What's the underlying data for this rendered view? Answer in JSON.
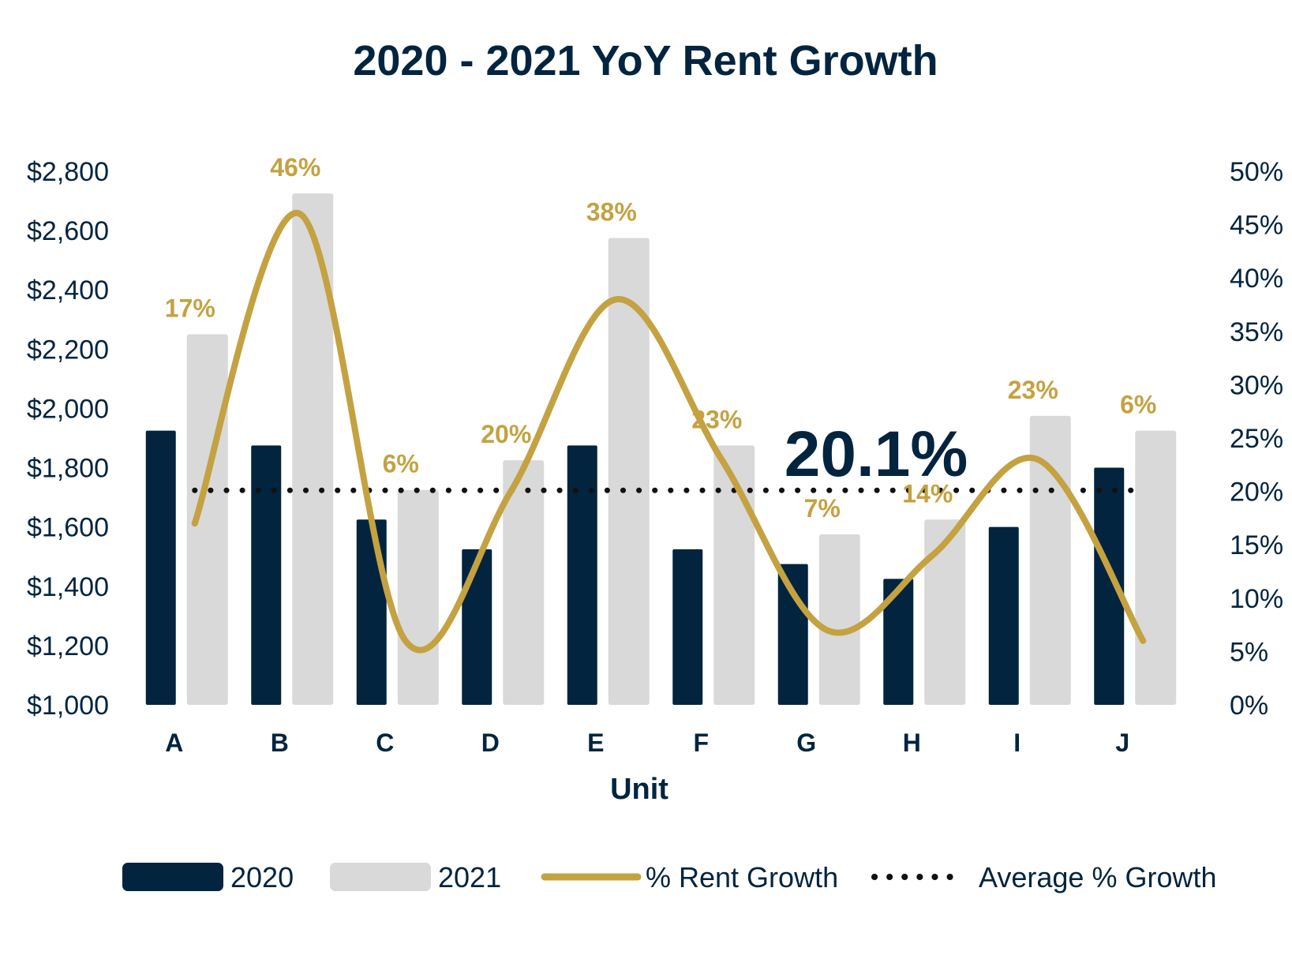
{
  "colors": {
    "navy": "#02243f",
    "gray": "#d9d9d9",
    "gold": "#c4a241",
    "dots": "#111111"
  },
  "chart_data": {
    "type": "bar",
    "title": "2020 - 2021 YoY Rent Growth",
    "xlabel": "Unit",
    "ylabel": "",
    "categories": [
      "A",
      "B",
      "C",
      "D",
      "E",
      "F",
      "G",
      "H",
      "I",
      "J"
    ],
    "ylim": [
      1000,
      2800
    ],
    "yticks": [
      1000,
      1200,
      1400,
      1600,
      1800,
      2000,
      2200,
      2400,
      2600,
      2800
    ],
    "ytick_labels": [
      "$1,000",
      "$1,200",
      "$1,400",
      "$1,600",
      "$1,800",
      "$2,000",
      "$2,200",
      "$2,400",
      "$2,600",
      "$2,800"
    ],
    "y2lim": [
      0,
      50
    ],
    "y2ticks": [
      0,
      5,
      10,
      15,
      20,
      25,
      30,
      35,
      40,
      45,
      50
    ],
    "y2tick_labels": [
      "0%",
      "5%",
      "10%",
      "15%",
      "20%",
      "25%",
      "30%",
      "35%",
      "40%",
      "45%",
      "50%"
    ],
    "series": [
      {
        "name": "2020",
        "type": "bar",
        "values": [
          1925,
          1875,
          1625,
          1525,
          1875,
          1525,
          1475,
          1425,
          1600,
          1800
        ]
      },
      {
        "name": "2021",
        "type": "bar",
        "values": [
          2250,
          2725,
          1725,
          1825,
          2575,
          1875,
          1575,
          1625,
          1975,
          1925
        ]
      },
      {
        "name": "% Rent Growth",
        "type": "line",
        "axis": "secondary",
        "values": [
          17,
          46,
          6,
          20,
          38,
          23,
          7,
          14,
          23,
          6
        ],
        "data_labels": [
          "17%",
          "46%",
          "6%",
          "20%",
          "38%",
          "23%",
          "7%",
          "14%",
          "23%",
          "6%"
        ]
      },
      {
        "name": "Average % Growth",
        "type": "line",
        "axis": "secondary",
        "style": "dotted",
        "value": 20.1
      }
    ],
    "annotation": "20.1%",
    "legend": {
      "position": "bottom",
      "entries": [
        "2020",
        "2021",
        "% Rent Growth",
        "Average % Growth"
      ]
    },
    "grid": false
  }
}
